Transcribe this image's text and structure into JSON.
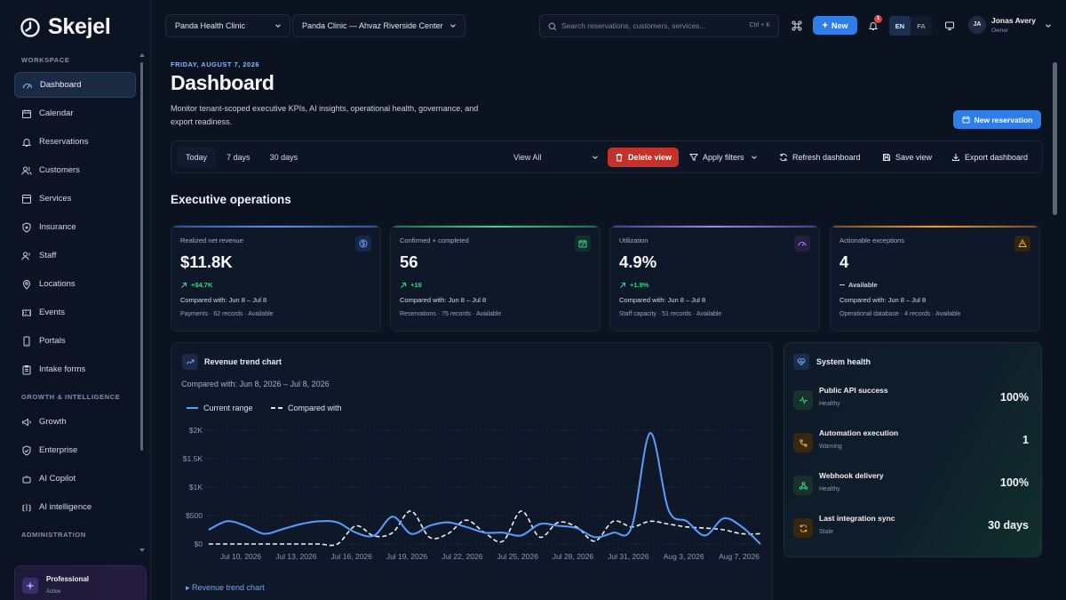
{
  "brand": {
    "name": "Skejel"
  },
  "sidebar": {
    "sections": [
      {
        "title": "WORKSPACE"
      },
      {
        "title": "GROWTH & INTELLIGENCE"
      },
      {
        "title": "ADMINISTRATION"
      }
    ],
    "items": [
      {
        "label": "Dashboard",
        "icon": "gauge-icon",
        "active": true
      },
      {
        "label": "Calendar",
        "icon": "calendar-icon"
      },
      {
        "label": "Reservations",
        "icon": "bell-icon"
      },
      {
        "label": "Customers",
        "icon": "users-icon"
      },
      {
        "label": "Services",
        "icon": "list-icon"
      },
      {
        "label": "Insurance",
        "icon": "shield-icon"
      },
      {
        "label": "Staff",
        "icon": "staff-icon"
      },
      {
        "label": "Locations",
        "icon": "pin-icon"
      },
      {
        "label": "Events",
        "icon": "ticket-icon"
      },
      {
        "label": "Portals",
        "icon": "phone-icon"
      },
      {
        "label": "Intake forms",
        "icon": "clipboard-icon"
      },
      {
        "label": "Growth",
        "icon": "megaphone-icon"
      },
      {
        "label": "Enterprise",
        "icon": "shield-check-icon"
      },
      {
        "label": "AI Copilot",
        "icon": "bot-icon"
      },
      {
        "label": "AI intelligence",
        "icon": "brain-icon"
      }
    ],
    "plan": {
      "name": "Professional",
      "status": "Active"
    }
  },
  "topbar": {
    "tenant": "Panda Health Clinic",
    "location": "Panda Clinic — Ahvaz Riverside Center",
    "search_placeholder": "Search reservations, customers, services...",
    "search_shortcut": "Ctrl + K",
    "new_label": "New",
    "notifications_count": "1",
    "languages": [
      "EN",
      "FA"
    ],
    "user": {
      "initials": "JA",
      "name": "Jonas Avery",
      "role": "Owner"
    }
  },
  "header": {
    "date": "FRIDAY, AUGUST 7, 2026",
    "title": "Dashboard",
    "description": "Monitor tenant-scoped executive KPIs, AI insights, operational health, governance, and export readiness.",
    "new_reservation_label": "New reservation"
  },
  "toolbar": {
    "ranges": [
      "Today",
      "7 days",
      "30 days"
    ],
    "view": "View All",
    "delete_view": "Delete view",
    "apply_filters": "Apply filters",
    "refresh": "Refresh dashboard",
    "save_view": "Save view",
    "export": "Export dashboard"
  },
  "section_title": "Executive operations",
  "kpis": [
    {
      "label": "Realized net revenue",
      "value": "$11.8K",
      "delta": "+$4.7K",
      "compare": "Compared with: Jun 8 – Jul 8",
      "foot": "Payments · 62 records · Available",
      "accent": "#4f8cf7",
      "icon": "dollar-icon"
    },
    {
      "label": "Confirmed + completed",
      "value": "56",
      "delta": "+19",
      "compare": "Compared with: Jun 8 – Jul 8",
      "foot": "Reservations · 75 records · Available",
      "accent": "#3ecf8e",
      "icon": "calendar-check-icon"
    },
    {
      "label": "Utilization",
      "value": "4.9%",
      "delta": "+1.9%",
      "compare": "Compared with: Jun 8 – Jul 8",
      "foot": "Staff capacity · 51 records · Available",
      "accent": "#9a7cf0",
      "icon": "gauge-icon"
    },
    {
      "label": "Actionable exceptions",
      "value": "4",
      "delta": "Available",
      "compare": "Compared with: Jun 8 – Jul 8",
      "foot": "Operational database · 4 records · Available",
      "accent": "#f29a38",
      "icon": "warning-icon"
    }
  ],
  "revenue_chart": {
    "title": "Revenue trend chart",
    "subtitle": "Compared with: Jun 8, 2026 – Jul 8, 2026",
    "footer_link": "▸ Revenue trend chart"
  },
  "chart_data": {
    "type": "line",
    "title": "Revenue trend chart",
    "x_ticks": [
      "Jul 10, 2026",
      "Jul 13, 2026",
      "Jul 16, 2026",
      "Jul 19, 2026",
      "Jul 22, 2026",
      "Jul 25, 2026",
      "Jul 28, 2026",
      "Jul 31, 2026",
      "Aug 3, 2026",
      "Aug 7, 2026"
    ],
    "y_ticks": [
      "$0",
      "$500",
      "$1K",
      "$1.5K",
      "$2K"
    ],
    "ylim": [
      0,
      2000
    ],
    "grid": true,
    "legend_position": "top-left",
    "x": [
      "Jul 8",
      "Jul 9",
      "Jul 10",
      "Jul 11",
      "Jul 12",
      "Jul 13",
      "Jul 14",
      "Jul 15",
      "Jul 16",
      "Jul 17",
      "Jul 18",
      "Jul 19",
      "Jul 20",
      "Jul 21",
      "Jul 22",
      "Jul 23",
      "Jul 24",
      "Jul 25",
      "Jul 26",
      "Jul 27",
      "Jul 28",
      "Jul 29",
      "Jul 30",
      "Jul 31",
      "Aug 1",
      "Aug 2",
      "Aug 3",
      "Aug 4",
      "Aug 5",
      "Aug 6",
      "Aug 7"
    ],
    "series": [
      {
        "name": "Current range",
        "color": "#5b9dff",
        "dash": false,
        "values": [
          250,
          400,
          320,
          180,
          260,
          350,
          400,
          380,
          200,
          150,
          480,
          180,
          320,
          380,
          300,
          200,
          200,
          150,
          350,
          320,
          280,
          120,
          200,
          300,
          1950,
          600,
          400,
          150,
          450,
          300,
          0
        ]
      },
      {
        "name": "Compared with",
        "color": "#eef2f8",
        "dash": true,
        "values": [
          0,
          0,
          0,
          0,
          0,
          0,
          0,
          0,
          320,
          140,
          200,
          580,
          120,
          180,
          420,
          200,
          50,
          580,
          120,
          380,
          300,
          50,
          400,
          300,
          400,
          350,
          300,
          280,
          250,
          180,
          180
        ]
      }
    ]
  },
  "system_health": {
    "title": "System health",
    "rows": [
      {
        "name": "Public API success",
        "status": "Healthy",
        "value": "100%",
        "icon": "pulse-icon",
        "color": "#3ecf8e"
      },
      {
        "name": "Automation execution",
        "status": "Warning",
        "value": "1",
        "icon": "route-icon",
        "color": "#f29a38"
      },
      {
        "name": "Webhook delivery",
        "status": "Healthy",
        "value": "100%",
        "icon": "webhook-icon",
        "color": "#3ecf8e"
      },
      {
        "name": "Last integration sync",
        "status": "Stale",
        "value": "30 days",
        "icon": "sync-icon",
        "color": "#f29a38"
      }
    ]
  }
}
